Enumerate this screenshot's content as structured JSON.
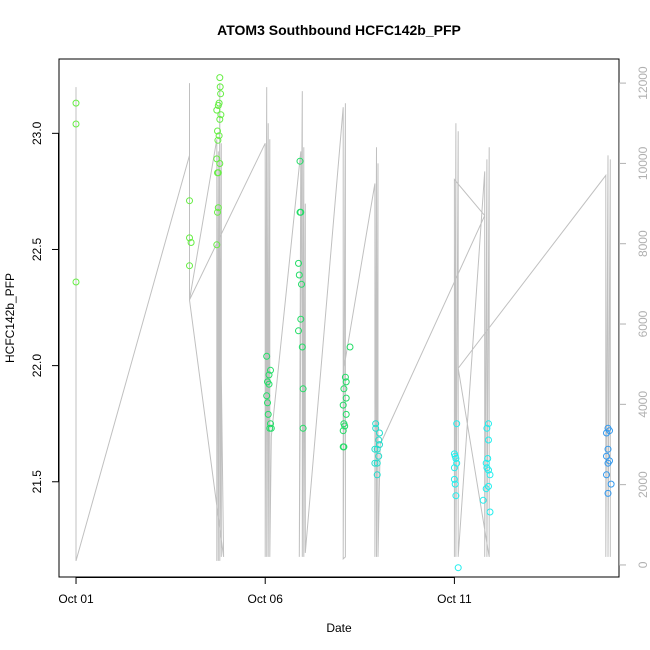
{
  "chart_data": {
    "type": "scatter",
    "title": "ATOM3 Southbound HCFC142b_PFP",
    "xlabel": "Date",
    "ylabel": "HCFC142b_PFP",
    "x_ticks": [
      {
        "label": "Oct 01",
        "value": 0
      },
      {
        "label": "Oct 06",
        "value": 5
      },
      {
        "label": "Oct 11",
        "value": 10
      }
    ],
    "xlim": [
      -0.45,
      14.35
    ],
    "ylim": [
      21.09,
      23.32
    ],
    "y_ticks": [
      21.5,
      22.0,
      22.5,
      23.0
    ],
    "y_tick_labels": [
      "21.5",
      "22.0",
      "22.5",
      "23.0"
    ],
    "y2lim": [
      -300,
      12600
    ],
    "y2_ticks": [
      0,
      2000,
      4000,
      6000,
      8000,
      10000,
      12000
    ],
    "y2_tick_labels": [
      "0",
      "2000",
      "4000",
      "6000",
      "8000",
      "10000",
      "12000"
    ],
    "y2_line_color": "#c0c0c0",
    "point_colors": {
      "early": "#66ee44",
      "mid": "#22dd66",
      "late1": "#22ddcc",
      "late2": "#22eeee",
      "last": "#3399ee"
    },
    "series": [
      {
        "points": [
          {
            "x": 0.0,
            "y": 23.13,
            "c": "early"
          },
          {
            "x": 0.0,
            "y": 23.04,
            "c": "early"
          },
          {
            "x": 0.0,
            "y": 22.36,
            "c": "early"
          },
          {
            "x": 3.0,
            "y": 22.71,
            "c": "early"
          },
          {
            "x": 3.0,
            "y": 22.55,
            "c": "early"
          },
          {
            "x": 3.04,
            "y": 22.53,
            "c": "early"
          },
          {
            "x": 3.0,
            "y": 22.43,
            "c": "early"
          },
          {
            "x": 3.8,
            "y": 23.24,
            "c": "early"
          },
          {
            "x": 3.81,
            "y": 23.2,
            "c": "early"
          },
          {
            "x": 3.82,
            "y": 23.17,
            "c": "early"
          },
          {
            "x": 3.78,
            "y": 23.13,
            "c": "early"
          },
          {
            "x": 3.76,
            "y": 23.12,
            "c": "early"
          },
          {
            "x": 3.72,
            "y": 23.1,
            "c": "early"
          },
          {
            "x": 3.83,
            "y": 23.08,
            "c": "early"
          },
          {
            "x": 3.8,
            "y": 23.06,
            "c": "early"
          },
          {
            "x": 3.74,
            "y": 23.01,
            "c": "early"
          },
          {
            "x": 3.78,
            "y": 22.99,
            "c": "early"
          },
          {
            "x": 3.75,
            "y": 22.97,
            "c": "early"
          },
          {
            "x": 3.72,
            "y": 22.89,
            "c": "early"
          },
          {
            "x": 3.8,
            "y": 22.87,
            "c": "early"
          },
          {
            "x": 3.76,
            "y": 22.83,
            "c": "early"
          },
          {
            "x": 3.74,
            "y": 22.83,
            "c": "early"
          },
          {
            "x": 3.76,
            "y": 22.68,
            "c": "early"
          },
          {
            "x": 3.74,
            "y": 22.66,
            "c": "early"
          },
          {
            "x": 3.72,
            "y": 22.52,
            "c": "early"
          },
          {
            "x": 5.04,
            "y": 22.04,
            "c": "mid"
          },
          {
            "x": 5.14,
            "y": 21.98,
            "c": "mid"
          },
          {
            "x": 5.1,
            "y": 21.96,
            "c": "mid"
          },
          {
            "x": 5.06,
            "y": 21.93,
            "c": "mid"
          },
          {
            "x": 5.1,
            "y": 21.92,
            "c": "mid"
          },
          {
            "x": 5.04,
            "y": 21.87,
            "c": "mid"
          },
          {
            "x": 5.06,
            "y": 21.84,
            "c": "mid"
          },
          {
            "x": 5.08,
            "y": 21.79,
            "c": "mid"
          },
          {
            "x": 5.14,
            "y": 21.75,
            "c": "mid"
          },
          {
            "x": 5.12,
            "y": 21.73,
            "c": "mid"
          },
          {
            "x": 5.16,
            "y": 21.73,
            "c": "mid"
          },
          {
            "x": 5.92,
            "y": 22.88,
            "c": "mid"
          },
          {
            "x": 5.94,
            "y": 22.66,
            "c": "mid"
          },
          {
            "x": 5.92,
            "y": 22.66,
            "c": "mid"
          },
          {
            "x": 5.88,
            "y": 22.44,
            "c": "mid"
          },
          {
            "x": 5.9,
            "y": 22.39,
            "c": "mid"
          },
          {
            "x": 5.96,
            "y": 22.35,
            "c": "mid"
          },
          {
            "x": 5.94,
            "y": 22.2,
            "c": "mid"
          },
          {
            "x": 5.88,
            "y": 22.15,
            "c": "mid"
          },
          {
            "x": 5.98,
            "y": 22.08,
            "c": "mid"
          },
          {
            "x": 6.0,
            "y": 21.9,
            "c": "mid"
          },
          {
            "x": 6.0,
            "y": 21.73,
            "c": "mid"
          },
          {
            "x": 7.24,
            "y": 22.08,
            "c": "mid"
          },
          {
            "x": 7.12,
            "y": 21.95,
            "c": "mid"
          },
          {
            "x": 7.14,
            "y": 21.93,
            "c": "mid"
          },
          {
            "x": 7.08,
            "y": 21.9,
            "c": "mid"
          },
          {
            "x": 7.14,
            "y": 21.86,
            "c": "mid"
          },
          {
            "x": 7.06,
            "y": 21.83,
            "c": "mid"
          },
          {
            "x": 7.14,
            "y": 21.79,
            "c": "mid"
          },
          {
            "x": 7.08,
            "y": 21.75,
            "c": "mid"
          },
          {
            "x": 7.1,
            "y": 21.74,
            "c": "mid"
          },
          {
            "x": 7.06,
            "y": 21.72,
            "c": "mid"
          },
          {
            "x": 7.08,
            "y": 21.65,
            "c": "mid"
          },
          {
            "x": 7.06,
            "y": 21.65,
            "c": "mid"
          },
          {
            "x": 7.92,
            "y": 21.75,
            "c": "late1"
          },
          {
            "x": 7.92,
            "y": 21.73,
            "c": "late1"
          },
          {
            "x": 8.02,
            "y": 21.71,
            "c": "late1"
          },
          {
            "x": 8.0,
            "y": 21.68,
            "c": "late1"
          },
          {
            "x": 8.02,
            "y": 21.66,
            "c": "late1"
          },
          {
            "x": 7.96,
            "y": 21.64,
            "c": "late1"
          },
          {
            "x": 7.9,
            "y": 21.64,
            "c": "late1"
          },
          {
            "x": 8.0,
            "y": 21.61,
            "c": "late1"
          },
          {
            "x": 7.9,
            "y": 21.58,
            "c": "late1"
          },
          {
            "x": 7.96,
            "y": 21.58,
            "c": "late1"
          },
          {
            "x": 7.96,
            "y": 21.53,
            "c": "late1"
          },
          {
            "x": 10.06,
            "y": 21.75,
            "c": "late2"
          },
          {
            "x": 10.0,
            "y": 21.62,
            "c": "late2"
          },
          {
            "x": 10.02,
            "y": 21.61,
            "c": "late2"
          },
          {
            "x": 10.04,
            "y": 21.6,
            "c": "late2"
          },
          {
            "x": 10.06,
            "y": 21.58,
            "c": "late2"
          },
          {
            "x": 10.0,
            "y": 21.56,
            "c": "late2"
          },
          {
            "x": 10.0,
            "y": 21.51,
            "c": "late2"
          },
          {
            "x": 10.02,
            "y": 21.49,
            "c": "late2"
          },
          {
            "x": 10.04,
            "y": 21.44,
            "c": "late2"
          },
          {
            "x": 10.1,
            "y": 21.13,
            "c": "late2"
          },
          {
            "x": 10.9,
            "y": 21.75,
            "c": "late2"
          },
          {
            "x": 10.86,
            "y": 21.73,
            "c": "late2"
          },
          {
            "x": 10.9,
            "y": 21.68,
            "c": "late2"
          },
          {
            "x": 10.88,
            "y": 21.6,
            "c": "late2"
          },
          {
            "x": 10.84,
            "y": 21.58,
            "c": "late2"
          },
          {
            "x": 10.86,
            "y": 21.56,
            "c": "late2"
          },
          {
            "x": 10.9,
            "y": 21.55,
            "c": "late2"
          },
          {
            "x": 10.94,
            "y": 21.53,
            "c": "late2"
          },
          {
            "x": 10.9,
            "y": 21.48,
            "c": "late2"
          },
          {
            "x": 10.84,
            "y": 21.47,
            "c": "late2"
          },
          {
            "x": 10.76,
            "y": 21.42,
            "c": "late2"
          },
          {
            "x": 10.94,
            "y": 21.37,
            "c": "late2"
          },
          {
            "x": 14.06,
            "y": 21.73,
            "c": "last"
          },
          {
            "x": 14.1,
            "y": 21.72,
            "c": "last"
          },
          {
            "x": 14.02,
            "y": 21.71,
            "c": "last"
          },
          {
            "x": 14.06,
            "y": 21.64,
            "c": "last"
          },
          {
            "x": 14.02,
            "y": 21.61,
            "c": "last"
          },
          {
            "x": 14.1,
            "y": 21.59,
            "c": "last"
          },
          {
            "x": 14.06,
            "y": 21.58,
            "c": "last"
          },
          {
            "x": 14.02,
            "y": 21.53,
            "c": "last"
          },
          {
            "x": 14.14,
            "y": 21.49,
            "c": "last"
          },
          {
            "x": 14.06,
            "y": 21.45,
            "c": "last"
          }
        ]
      },
      {
        "axis": "y2",
        "line": [
          [
            0.0,
            11900
          ],
          [
            0.0,
            100
          ],
          [
            3.0,
            10200
          ],
          [
            3.0,
            7000
          ],
          [
            3.0,
            12000
          ],
          [
            3.0,
            6600
          ],
          [
            3.72,
            10600
          ],
          [
            3.72,
            100
          ],
          [
            3.76,
            10300
          ],
          [
            3.76,
            100
          ],
          [
            3.8,
            12000
          ],
          [
            3.8,
            100
          ],
          [
            3.84,
            10500
          ],
          [
            3.84,
            200
          ],
          [
            3.8,
            7700
          ],
          [
            3.9,
            200
          ],
          [
            3.0,
            6600
          ],
          [
            5.0,
            10500
          ],
          [
            5.0,
            200
          ],
          [
            5.04,
            11900
          ],
          [
            5.04,
            200
          ],
          [
            5.08,
            11000
          ],
          [
            5.08,
            200
          ],
          [
            5.12,
            10600
          ],
          [
            5.12,
            200
          ],
          [
            5.16,
            3200
          ],
          [
            5.94,
            10300
          ],
          [
            5.9,
            200
          ],
          [
            5.98,
            11800
          ],
          [
            5.98,
            200
          ],
          [
            6.02,
            10400
          ],
          [
            6.02,
            200
          ],
          [
            6.06,
            9000
          ],
          [
            6.06,
            300
          ],
          [
            7.06,
            11400
          ],
          [
            7.06,
            300
          ],
          [
            7.12,
            11500
          ],
          [
            7.12,
            200
          ],
          [
            7.06,
            150
          ],
          [
            7.06,
            4800
          ],
          [
            7.9,
            9500
          ],
          [
            7.9,
            200
          ],
          [
            7.94,
            10400
          ],
          [
            7.94,
            200
          ],
          [
            7.98,
            10000
          ],
          [
            7.98,
            200
          ],
          [
            8.04,
            3000
          ],
          [
            10.8,
            8700
          ],
          [
            10.0,
            9600
          ],
          [
            10.0,
            200
          ],
          [
            10.04,
            11000
          ],
          [
            10.04,
            200
          ],
          [
            10.1,
            10800
          ],
          [
            10.1,
            200
          ],
          [
            10.8,
            9800
          ],
          [
            10.8,
            200
          ],
          [
            10.86,
            10100
          ],
          [
            10.86,
            200
          ],
          [
            10.92,
            10400
          ],
          [
            10.92,
            200
          ],
          [
            10.1,
            4900
          ],
          [
            14.0,
            9700
          ],
          [
            14.0,
            200
          ],
          [
            14.06,
            10200
          ],
          [
            14.06,
            200
          ],
          [
            14.12,
            10100
          ],
          [
            14.12,
            200
          ]
        ]
      }
    ]
  }
}
